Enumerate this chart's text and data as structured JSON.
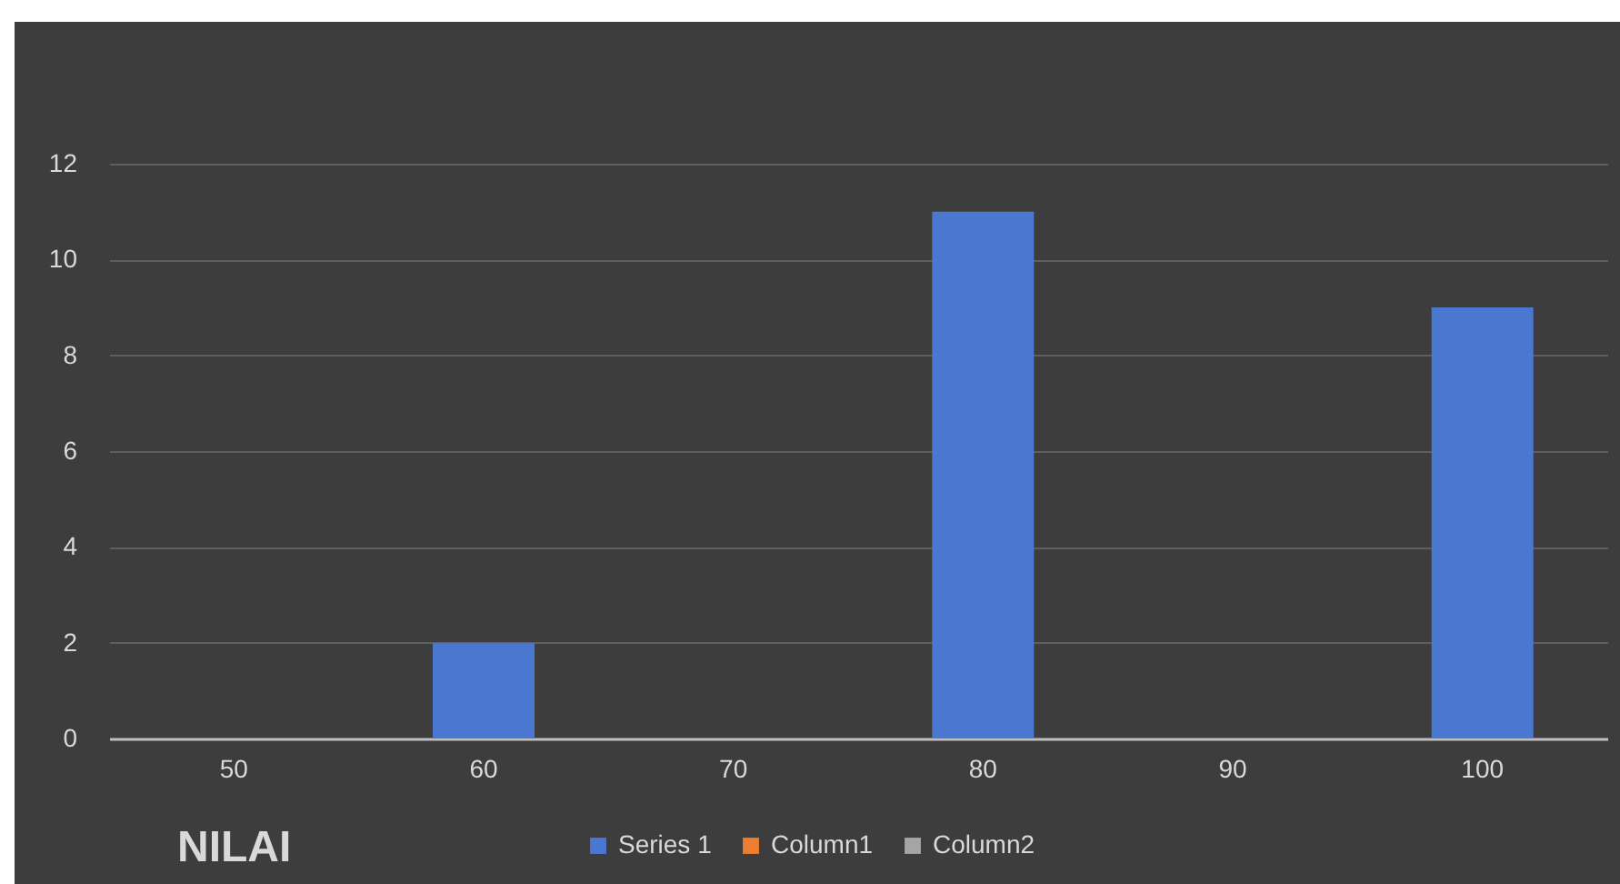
{
  "chart_data": {
    "type": "bar",
    "xlabel": "NILAI",
    "categories": [
      "50",
      "60",
      "70",
      "80",
      "90",
      "100"
    ],
    "series": [
      {
        "name": "Series 1",
        "color": "#4a78d0",
        "values": [
          null,
          2,
          null,
          11,
          null,
          9
        ]
      },
      {
        "name": "Column1",
        "color": "#ed7d31",
        "values": [
          null,
          null,
          null,
          null,
          null,
          null
        ]
      },
      {
        "name": "Column2",
        "color": "#a5a5a5",
        "values": [
          null,
          null,
          null,
          null,
          null,
          null
        ]
      }
    ],
    "ylim": [
      0,
      12
    ],
    "yticks": [
      0,
      2,
      4,
      6,
      8,
      10,
      12
    ],
    "grid": "y",
    "legend": "bottom"
  }
}
